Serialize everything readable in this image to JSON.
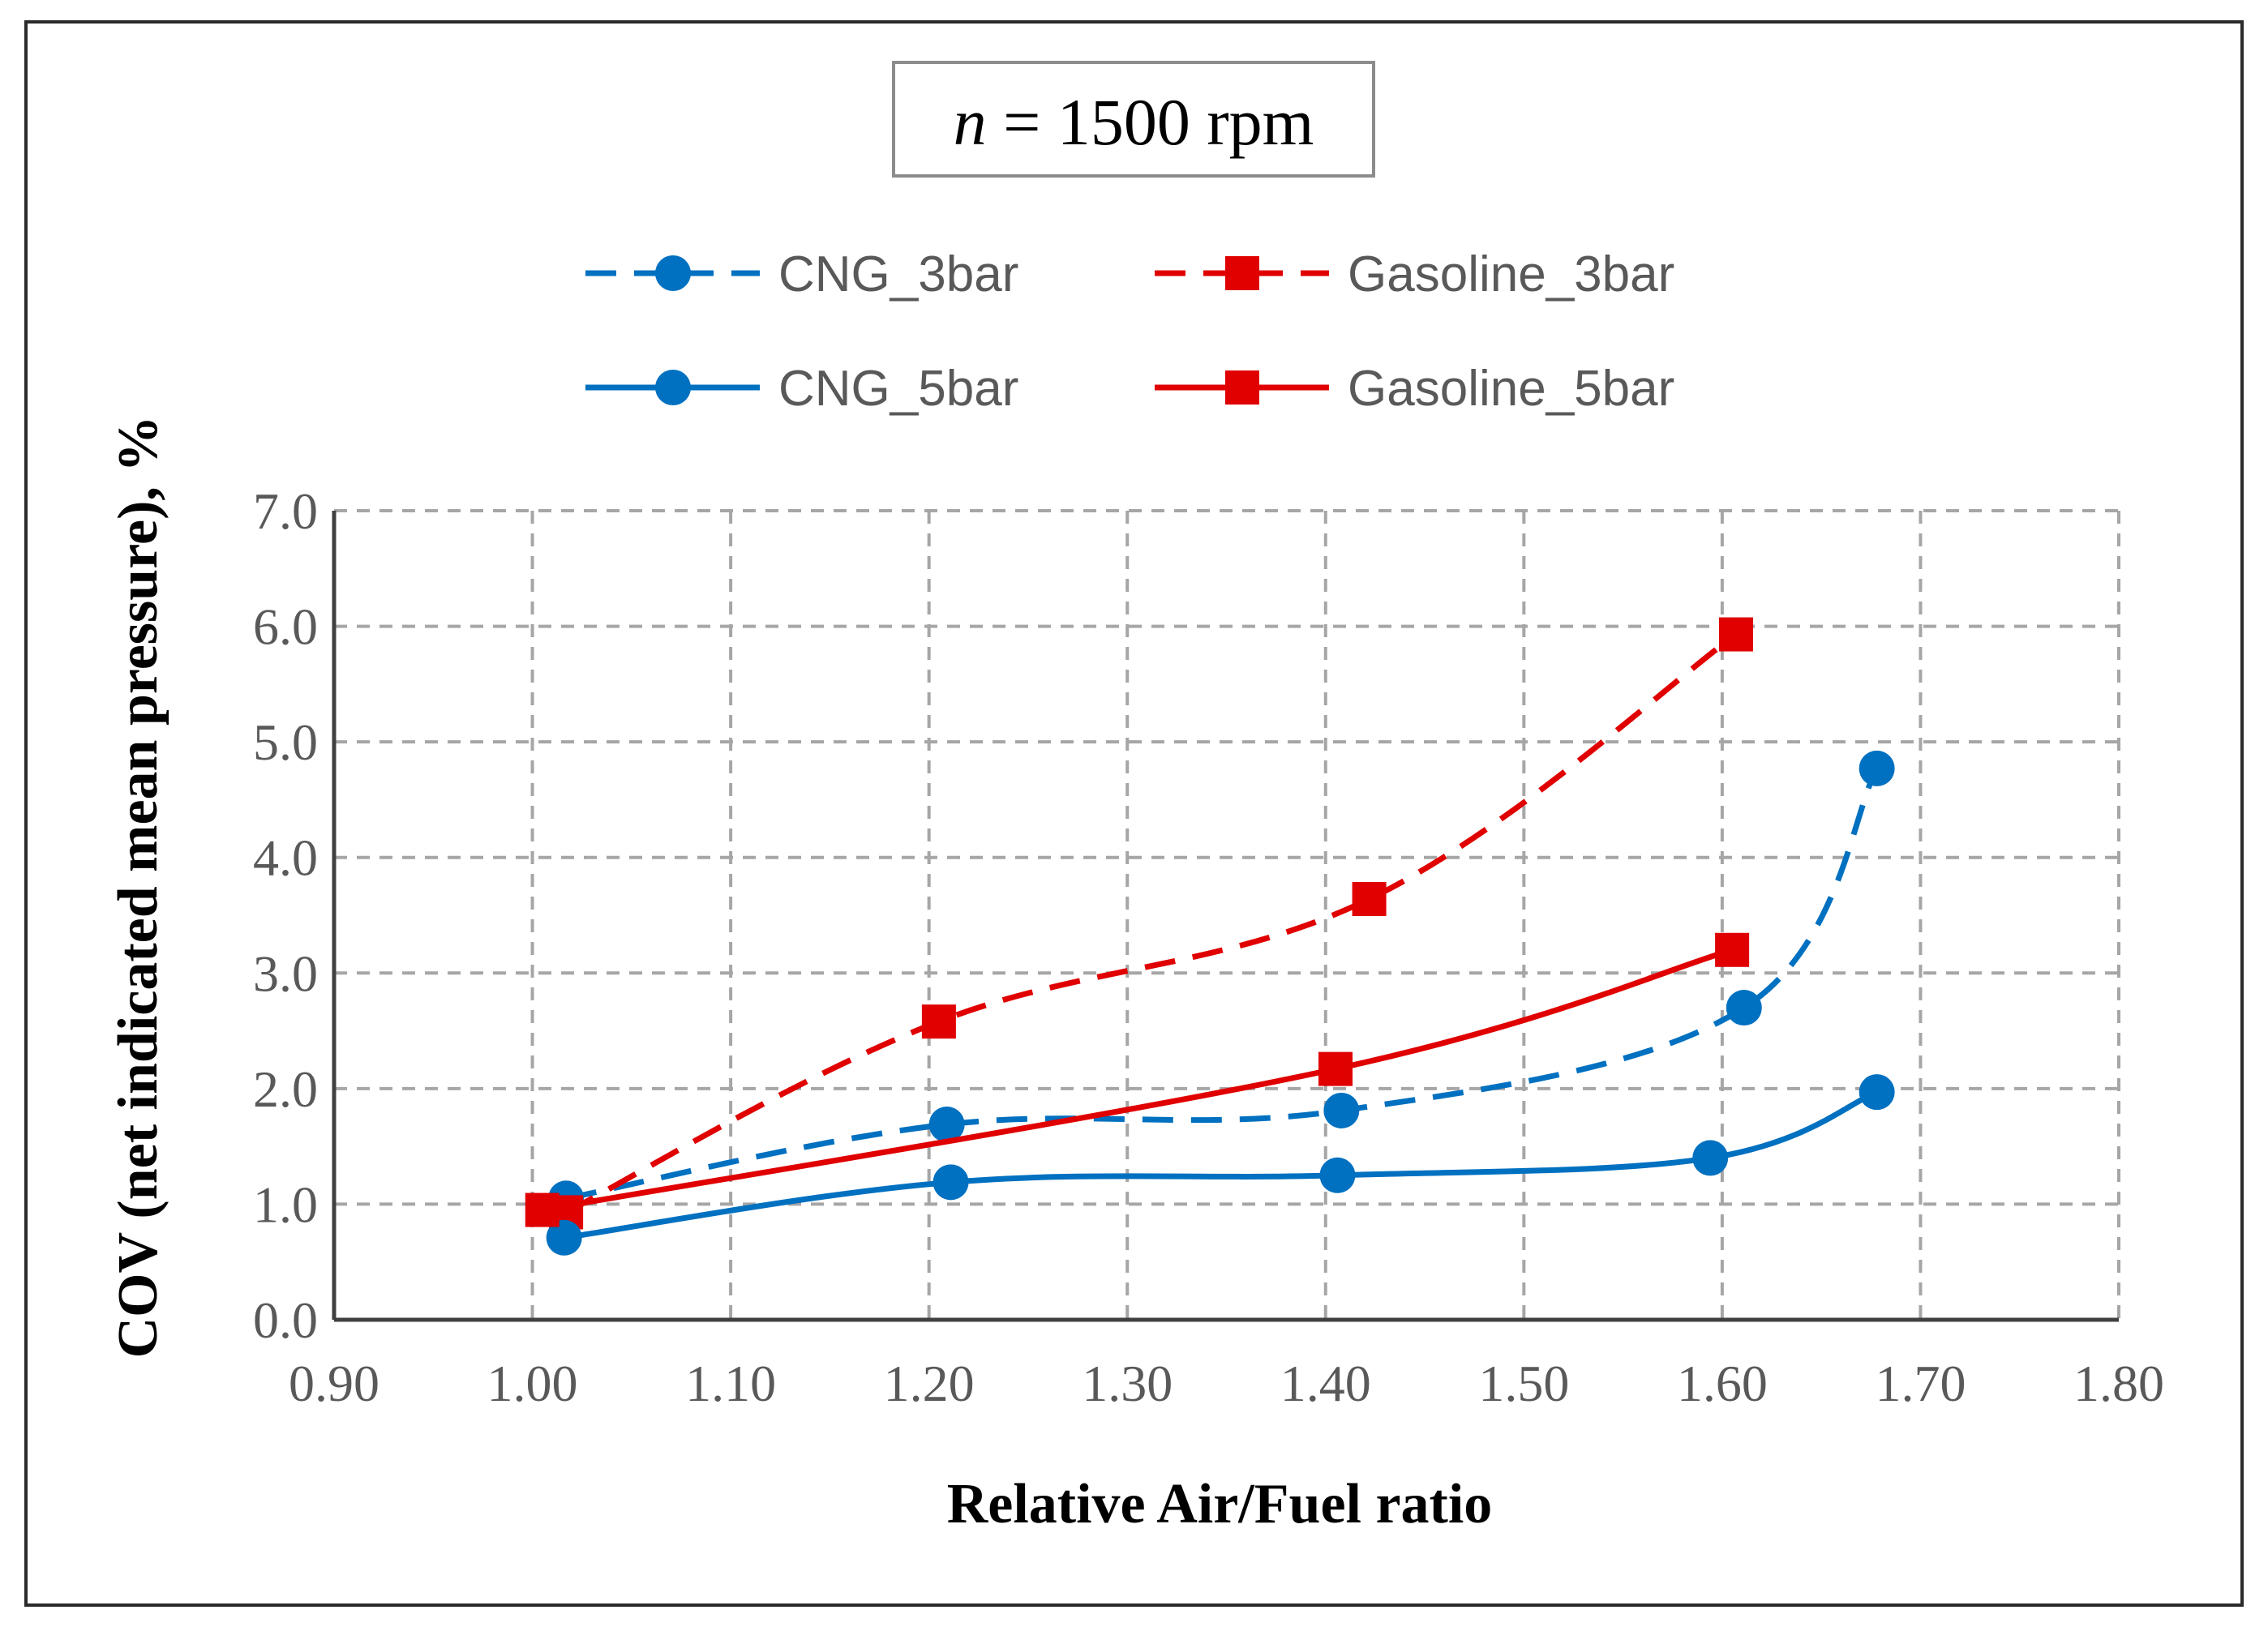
{
  "chart_data": {
    "type": "line",
    "title": {
      "variable": "n",
      "rest": " = 1500 rpm"
    },
    "xlabel": "Relative Air/Fuel ratio",
    "ylabel": "COV (net indicated mean pressure), %",
    "xlim": [
      0.9,
      1.8
    ],
    "ylim": [
      0.0,
      7.0
    ],
    "xticks": [
      "0.90",
      "1.00",
      "1.10",
      "1.20",
      "1.30",
      "1.40",
      "1.50",
      "1.60",
      "1.70",
      "1.80"
    ],
    "yticks": [
      "0.0",
      "1.0",
      "2.0",
      "3.0",
      "4.0",
      "5.0",
      "6.0",
      "7.0"
    ],
    "xtick_values": [
      0.9,
      1.0,
      1.1,
      1.2,
      1.3,
      1.4,
      1.5,
      1.6,
      1.7,
      1.8
    ],
    "ytick_values": [
      0,
      1,
      2,
      3,
      4,
      5,
      6,
      7
    ],
    "grid": true,
    "legend_position": "top",
    "series": [
      {
        "name": "CNG_3bar",
        "color": "#0070C0",
        "dash": "dashed",
        "marker": "circle",
        "x": [
          1.017,
          1.209,
          1.408,
          1.611,
          1.678
        ],
        "y": [
          1.05,
          1.69,
          1.81,
          2.7,
          4.77
        ]
      },
      {
        "name": "Gasoline_3bar",
        "color": "#E00000",
        "dash": "dashed",
        "marker": "square",
        "x": [
          1.017,
          1.205,
          1.422,
          1.607
        ],
        "y": [
          0.93,
          2.58,
          3.64,
          5.93
        ]
      },
      {
        "name": "CNG_5bar",
        "color": "#0070C0",
        "dash": "solid",
        "marker": "circle",
        "x": [
          1.016,
          1.211,
          1.406,
          1.594,
          1.678
        ],
        "y": [
          0.71,
          1.19,
          1.25,
          1.4,
          1.97
        ]
      },
      {
        "name": "Gasoline_5bar",
        "color": "#E00000",
        "dash": "solid",
        "marker": "square",
        "x": [
          1.005,
          1.405,
          1.605
        ],
        "y": [
          0.95,
          2.17,
          3.2
        ]
      }
    ]
  }
}
